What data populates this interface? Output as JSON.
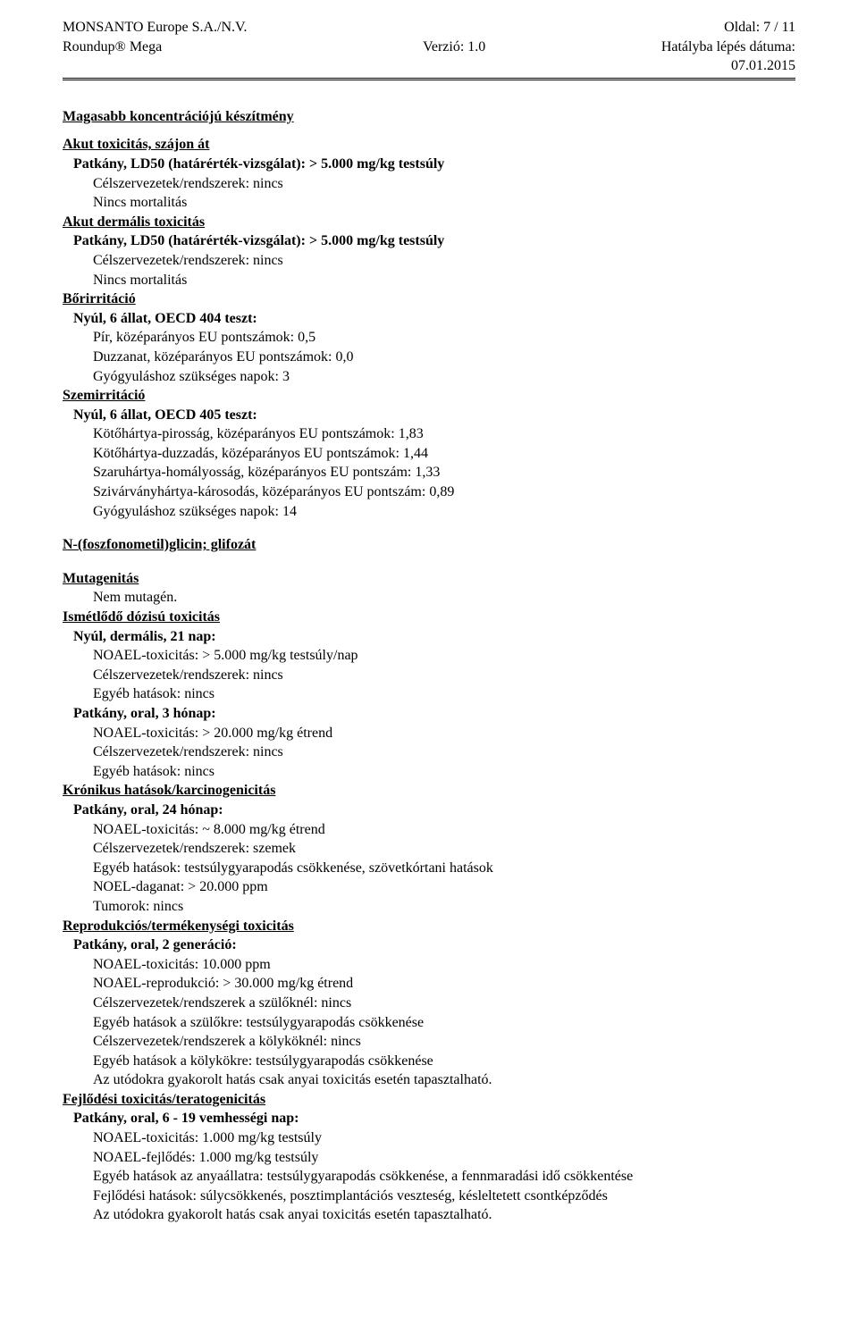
{
  "header": {
    "company": "MONSANTO Europe S.A./N.V.",
    "product": "Roundup® Mega",
    "version_label": "Verzió: 1.0",
    "page_label": "Oldal:  7 / 11",
    "effective_date_label": "Hatályba lépés dátuma:",
    "effective_date": "07.01.2015"
  },
  "s_prep": {
    "title": "Magasabb  koncentrációjú készítmény",
    "oral": {
      "heading": "Akut toxicitás, szájon át",
      "line1": "Patkány, LD50 (határérték-vizsgálat): > 5.000 mg/kg testsúly",
      "line2": "Célszervezetek/rendszerek: nincs",
      "line3": "Nincs mortalitás"
    },
    "dermal": {
      "heading": "Akut dermális toxicitás",
      "line1": "Patkány, LD50 (határérték-vizsgálat): > 5.000 mg/kg testsúly",
      "line2": "Célszervezetek/rendszerek: nincs",
      "line3": "Nincs mortalitás"
    },
    "skin": {
      "heading": "Bőrirritáció",
      "test": "Nyúl, 6 állat, OECD 404 teszt:",
      "l1": "Pír, középarányos EU pontszámok: 0,5",
      "l2": "Duzzanat, középarányos EU pontszámok: 0,0",
      "l3": "Gyógyuláshoz szükséges napok: 3"
    },
    "eye": {
      "heading": "Szemirritáció",
      "test": "Nyúl, 6 állat, OECD 405 teszt:",
      "l1": "Kötőhártya-pirosság, középarányos EU pontszámok: 1,83",
      "l2": "Kötőhártya-duzzadás, középarányos EU pontszámok: 1,44",
      "l3": "Szaruhártya-homályosság, középarányos EU pontszám: 1,33",
      "l4": "Szivárványhártya-károsodás, középarányos EU pontszám: 0,89",
      "l5": "Gyógyuláshoz szükséges napok: 14"
    }
  },
  "s_ingr": {
    "title": "N-(foszfonometil)glicin; glifozát",
    "mut": {
      "heading": "Mutagenitás",
      "l1": "Nem mutagén."
    },
    "rep": {
      "heading": "Ismétlődő dózisú toxicitás",
      "t1": "Nyúl, dermális, 21 nap:",
      "t1l1": "NOAEL-toxicitás: > 5.000 mg/kg testsúly/nap",
      "t1l2": "Célszervezetek/rendszerek: nincs",
      "t1l3": "Egyéb hatások: nincs",
      "t2": "Patkány, oral, 3 hónap:",
      "t2l1": "NOAEL-toxicitás: > 20.000 mg/kg étrend",
      "t2l2": "Célszervezetek/rendszerek: nincs",
      "t2l3": "Egyéb hatások: nincs"
    },
    "chr": {
      "heading": "Krónikus hatások/karcinogenicitás",
      "t1": "Patkány, oral, 24 hónap:",
      "l1": "NOAEL-toxicitás: ~ 8.000 mg/kg étrend",
      "l2": "Célszervezetek/rendszerek: szemek",
      "l3": "Egyéb hatások: testsúlygyarapodás csökkenése, szövetkórtani hatások",
      "l4": "NOEL-daganat: > 20.000 ppm",
      "l5": "Tumorok: nincs"
    },
    "repro": {
      "heading": "Reprodukciós/termékenységi toxicitás",
      "t1": "Patkány, oral, 2 generáció:",
      "l1": "NOAEL-toxicitás:  10.000 ppm",
      "l2": "NOAEL-reprodukció: > 30.000 mg/kg étrend",
      "l3": "Célszervezetek/rendszerek a szülőknél: nincs",
      "l4": "Egyéb hatások a szülőkre: testsúlygyarapodás csökkenése",
      "l5": "Célszervezetek/rendszerek a kölyköknél: nincs",
      "l6": "Egyéb hatások a kölykökre: testsúlygyarapodás csökkenése",
      "l7": "Az utódokra gyakorolt hatás csak anyai toxicitás esetén tapasztalható."
    },
    "dev": {
      "heading": "Fejlődési toxicitás/teratogenicitás",
      "t1": "Patkány, oral, 6 - 19 vemhességi nap:",
      "l1": "NOAEL-toxicitás:  1.000 mg/kg testsúly",
      "l2": "NOAEL-fejlődés:  1.000 mg/kg testsúly",
      "l3": "Egyéb hatások az anyaállatra: testsúlygyarapodás csökkenése, a fennmaradási idő csökkentése",
      "l4": "Fejlődési hatások: súlycsökkenés, posztimplantációs veszteség, késleltetett csontképződés",
      "l5": "Az utódokra gyakorolt hatás csak anyai toxicitás esetén tapasztalható."
    }
  }
}
